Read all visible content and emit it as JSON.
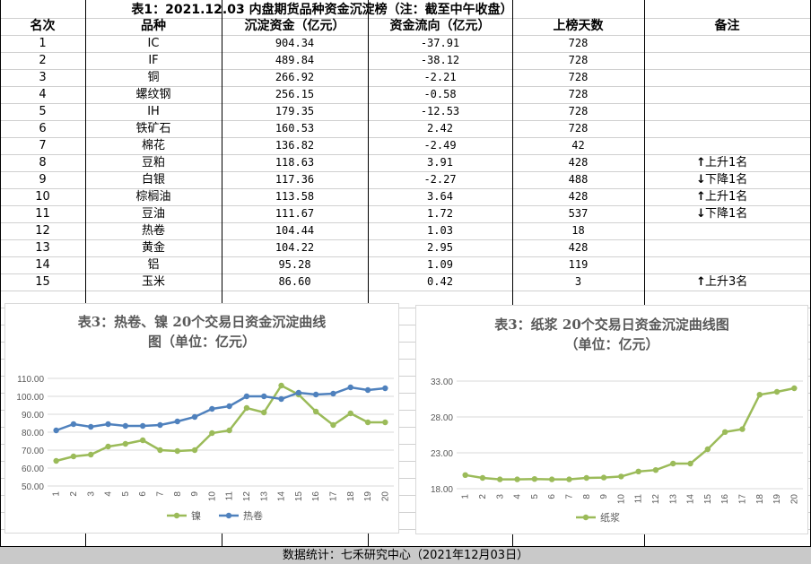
{
  "table": {
    "title": "表1：2021.12.03 内盘期货品种资金沉淀榜（注：截至中午收盘）",
    "headers": [
      "名次",
      "品种",
      "沉淀资金（亿元）",
      "资金流向（亿元）",
      "上榜天数",
      "备注"
    ],
    "rows": [
      {
        "rank": "1",
        "name": "IC",
        "fund": "904.34",
        "flow": "-37.91",
        "days": "728",
        "note": "",
        "dir": ""
      },
      {
        "rank": "2",
        "name": "IF",
        "fund": "489.84",
        "flow": "-38.12",
        "days": "728",
        "note": "",
        "dir": ""
      },
      {
        "rank": "3",
        "name": "铜",
        "fund": "266.92",
        "flow": "-2.21",
        "days": "728",
        "note": "",
        "dir": ""
      },
      {
        "rank": "4",
        "name": "螺纹钢",
        "fund": "256.15",
        "flow": "-0.58",
        "days": "728",
        "note": "",
        "dir": ""
      },
      {
        "rank": "5",
        "name": "IH",
        "fund": "179.35",
        "flow": "-12.53",
        "days": "728",
        "note": "",
        "dir": ""
      },
      {
        "rank": "6",
        "name": "铁矿石",
        "fund": "160.53",
        "flow": "2.42",
        "days": "728",
        "note": "",
        "dir": ""
      },
      {
        "rank": "7",
        "name": "棉花",
        "fund": "136.82",
        "flow": "-2.49",
        "days": "42",
        "note": "",
        "dir": ""
      },
      {
        "rank": "8",
        "name": "豆粕",
        "fund": "118.63",
        "flow": "3.91",
        "days": "428",
        "note": "上升1名",
        "dir": "↑"
      },
      {
        "rank": "9",
        "name": "白银",
        "fund": "117.36",
        "flow": "-2.27",
        "days": "488",
        "note": "下降1名",
        "dir": "↓"
      },
      {
        "rank": "10",
        "name": "棕榈油",
        "fund": "113.58",
        "flow": "3.64",
        "days": "428",
        "note": "上升1名",
        "dir": "↑"
      },
      {
        "rank": "11",
        "name": "豆油",
        "fund": "111.67",
        "flow": "1.72",
        "days": "537",
        "note": "下降1名",
        "dir": "↓"
      },
      {
        "rank": "12",
        "name": "热卷",
        "fund": "104.44",
        "flow": "1.03",
        "days": "18",
        "note": "",
        "dir": ""
      },
      {
        "rank": "13",
        "name": "黄金",
        "fund": "104.22",
        "flow": "2.95",
        "days": "428",
        "note": "",
        "dir": ""
      },
      {
        "rank": "14",
        "name": "铝",
        "fund": "95.28",
        "flow": "1.09",
        "days": "119",
        "note": "",
        "dir": ""
      },
      {
        "rank": "15",
        "name": "玉米",
        "fund": "86.60",
        "flow": "0.42",
        "days": "3",
        "note": "上升3名",
        "dir": "↑"
      }
    ]
  },
  "footer": "数据统计：七禾研究中心（2021年12月03日）",
  "chart_data": [
    {
      "type": "line",
      "title": "表3：热卷、镍 20个交易日资金沉淀曲线图（单位：亿元）",
      "title_line1": "表3：热卷、镍 20个交易日资金沉淀曲线",
      "title_line2": "图（单位：亿元）",
      "x": [
        "1",
        "2",
        "3",
        "4",
        "5",
        "6",
        "7",
        "8",
        "9",
        "10",
        "11",
        "12",
        "13",
        "14",
        "15",
        "16",
        "17",
        "18",
        "19",
        "20"
      ],
      "ylim": [
        50,
        110
      ],
      "yticks": [
        "50.00",
        "60.00",
        "70.00",
        "80.00",
        "90.00",
        "100.00",
        "110.00"
      ],
      "series": [
        {
          "name": "镍",
          "color": "#9bbb59",
          "values": [
            64,
            66.5,
            67.5,
            72,
            73.5,
            75.5,
            70,
            69.5,
            70,
            79.5,
            81,
            93.5,
            91,
            106,
            101,
            91.5,
            84,
            90.5,
            85.5,
            85.5
          ]
        },
        {
          "name": "热卷",
          "color": "#4f81bd",
          "values": [
            81,
            84.5,
            83,
            84.5,
            83.5,
            83.5,
            84,
            86,
            88.5,
            93,
            94.5,
            100,
            100,
            98.5,
            102,
            101,
            101.5,
            105,
            103.5,
            104.5
          ]
        }
      ]
    },
    {
      "type": "line",
      "title": "表3：纸浆 20个交易日资金沉淀曲线图（单位：亿元）",
      "title_line1": "表3：纸浆 20个交易日资金沉淀曲线图",
      "title_line2": "（单位：亿元）",
      "x": [
        "1",
        "2",
        "3",
        "4",
        "5",
        "6",
        "7",
        "8",
        "9",
        "10",
        "11",
        "12",
        "13",
        "14",
        "15",
        "16",
        "17",
        "18",
        "19",
        "20"
      ],
      "ylim": [
        18,
        33
      ],
      "yticks": [
        "18.00",
        "23.00",
        "28.00",
        "33.00"
      ],
      "series": [
        {
          "name": "纸浆",
          "color": "#9bbb59",
          "values": [
            19.9,
            19.5,
            19.3,
            19.3,
            19.35,
            19.3,
            19.3,
            19.5,
            19.55,
            19.7,
            20.4,
            20.6,
            21.5,
            21.5,
            23.5,
            25.9,
            26.3,
            31.1,
            31.5,
            32.0
          ]
        }
      ]
    }
  ]
}
